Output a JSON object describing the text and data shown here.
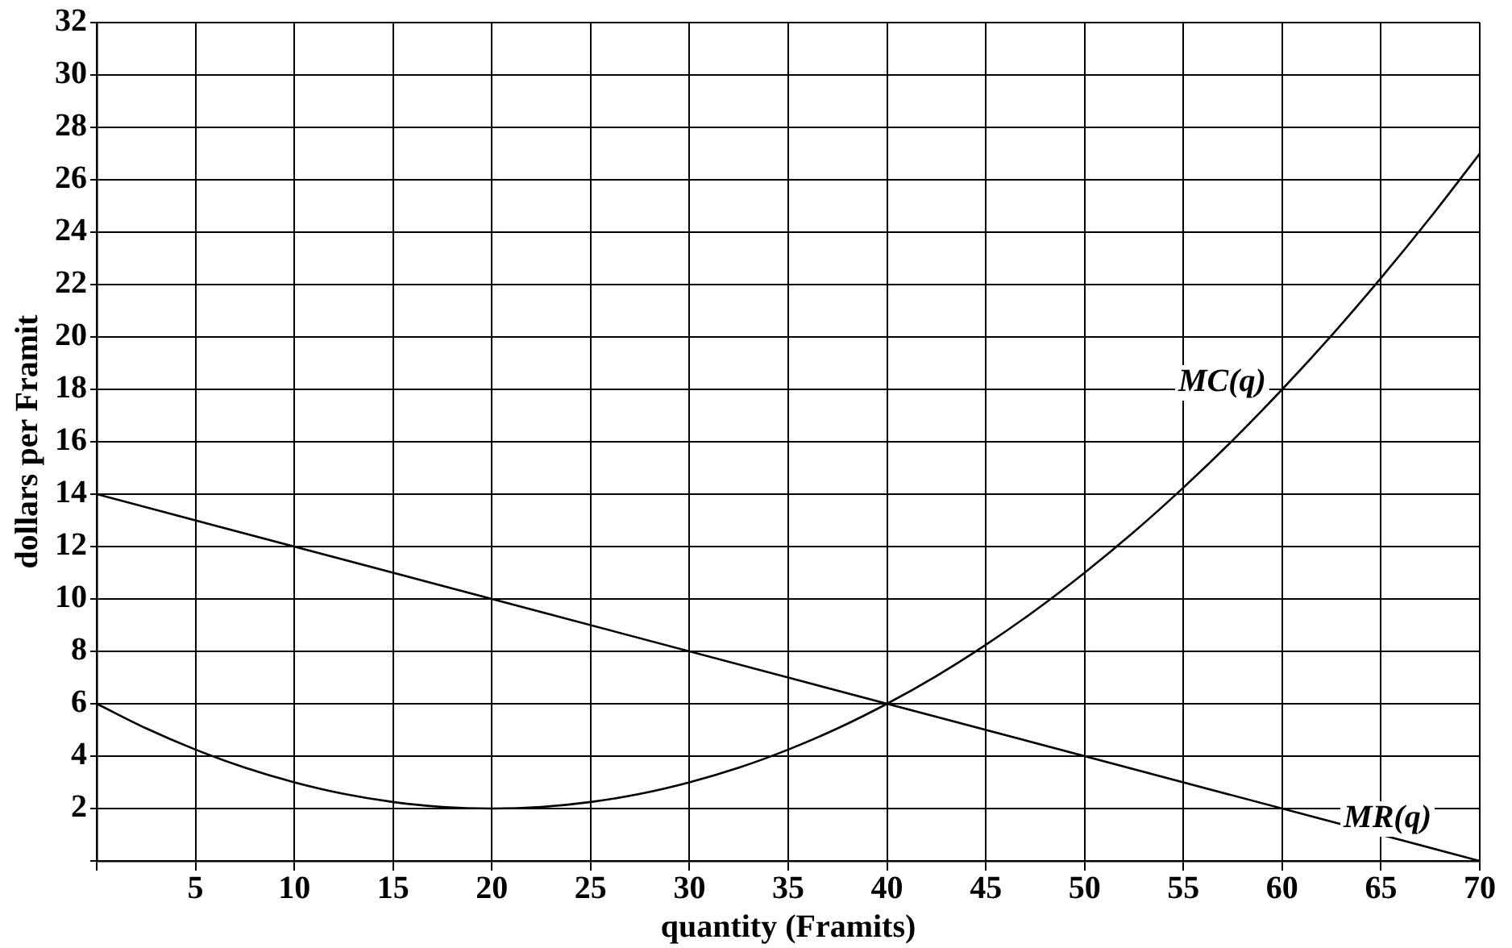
{
  "chart_data": {
    "type": "line",
    "xlabel": "quantity (Framits)",
    "ylabel": "dollars per Framit",
    "xlim": [
      0,
      70
    ],
    "ylim": [
      0,
      32
    ],
    "xticks": [
      {
        "value": 0,
        "label": null
      },
      5,
      10,
      15,
      20,
      25,
      30,
      35,
      40,
      45,
      50,
      55,
      60,
      65,
      70
    ],
    "yticks": [
      {
        "value": 0,
        "label": null
      },
      2,
      4,
      6,
      8,
      10,
      12,
      14,
      16,
      18,
      20,
      22,
      24,
      26,
      28,
      30,
      32
    ],
    "grid": true,
    "legend": false,
    "marker": "none",
    "line_style": "solid",
    "series": [
      {
        "name": "MC(q)",
        "color": "#000000",
        "x": [
          0,
          2.5,
          5,
          7.5,
          10,
          12.5,
          15,
          17.5,
          20,
          22.5,
          25,
          27.5,
          30,
          32.5,
          35,
          37.5,
          40,
          42.5,
          45,
          47.5,
          50,
          52.5,
          55,
          57.5,
          60,
          62.5,
          65,
          67.5,
          70
        ],
        "values": [
          6,
          5.06,
          4.25,
          3.56,
          3,
          2.56,
          2.25,
          2.06,
          2,
          2.06,
          2.25,
          2.56,
          3,
          3.56,
          4.25,
          5.06,
          6,
          7.06,
          8.25,
          9.56,
          11,
          12.56,
          14.25,
          16.06,
          18,
          20.06,
          22.25,
          24.56,
          27
        ]
      },
      {
        "name": "MR(q)",
        "color": "#000000",
        "x": [
          0,
          70
        ],
        "values": [
          14,
          0
        ]
      }
    ]
  }
}
